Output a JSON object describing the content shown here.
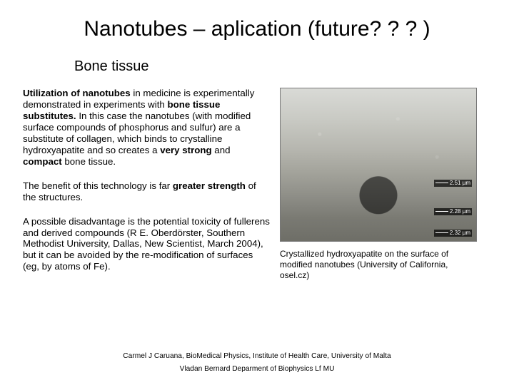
{
  "title": "Nanotubes – aplication (future? ? ? )",
  "subtitle": "Bone tissue",
  "para1_pre": "Utilization of nanotubes",
  "para1_mid1": " in medicine is experimentally demonstrated in experiments with ",
  "para1_b2": "bone tissue substitutes.",
  "para1_mid2": " In this case the nanotubes (with modified surface compounds of phosphorus and sulfur)  are a substitute of collagen, which binds to crystalline hydroxyapatite and so creates a ",
  "para1_b3": "very strong",
  "para1_mid3": " and ",
  "para1_b4": "compact",
  "para1_end": " bone tissue.",
  "para2_pre": "The benefit of this technology is far ",
  "para2_b": "greater strength",
  "para2_end": " of the structures.",
  "para3": "A possible disadvantage is the potential toxicity of fullerens and derived compounds (R E. Oberdörster, Southern Methodist University, Dallas, New Scientist, March 2004), but it can be avoided by the re-modification of surfaces (eg, by atoms of  Fe).",
  "img_scale1": "2.51 µm",
  "img_scale2": "2.28 µm",
  "img_scale3": "2.32 µm",
  "caption": "Crystallized hydroxyapatite on the surface of modified nanotubes (University of California, osel.cz)",
  "credit1": "Carmel J Caruana, BioMedical Physics, Institute of Health Care, University of Malta",
  "credit2": "Vladan Bernard Deparment of Biophysics Lf MU"
}
